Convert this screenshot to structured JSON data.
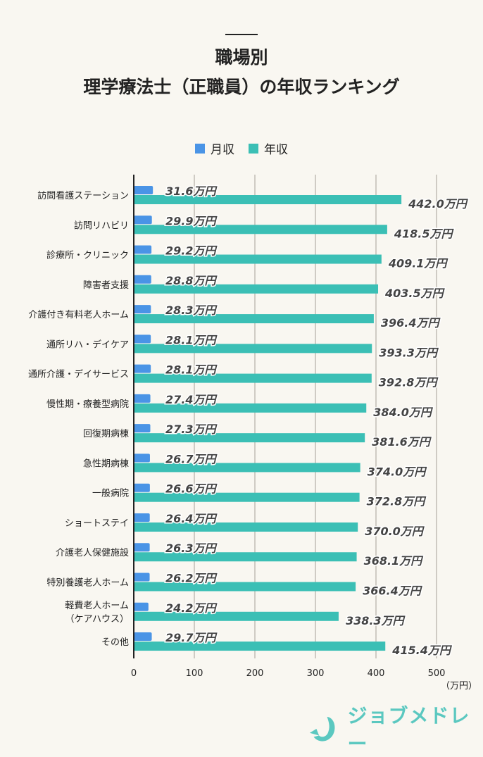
{
  "chart_data": {
    "type": "bar",
    "orientation": "horizontal",
    "title_lines": [
      "職場別",
      "理学療法士（正職員）の年収ランキング"
    ],
    "categories": [
      "訪問看護ステーション",
      "訪問リハビリ",
      "診療所・クリニック",
      "障害者支援",
      "介護付き有料老人ホーム",
      "通所リハ・デイケア",
      "通所介護・デイサービス",
      "慢性期・療養型病院",
      "回復期病棟",
      "急性期病棟",
      "一般病院",
      "ショートステイ",
      "介護老人保健施設",
      "特別養護老人ホーム",
      "軽費老人ホーム\n（ケアハウス）",
      "その他"
    ],
    "series": [
      {
        "name": "月収",
        "color": "#4a94e6",
        "values": [
          31.6,
          29.9,
          29.2,
          28.8,
          28.3,
          28.1,
          28.1,
          27.4,
          27.3,
          26.7,
          26.6,
          26.4,
          26.3,
          26.2,
          24.2,
          29.7
        ]
      },
      {
        "name": "年収",
        "color": "#3bbfb5",
        "values": [
          442.0,
          418.5,
          409.1,
          403.5,
          396.4,
          393.3,
          392.8,
          384.0,
          381.6,
          374.0,
          372.8,
          370.0,
          368.1,
          366.4,
          338.3,
          415.4
        ]
      }
    ],
    "value_suffix": "万円",
    "xlim": [
      0,
      500
    ],
    "xticks": [
      "0",
      "100",
      "200",
      "300",
      "400",
      "500"
    ],
    "xunit": "（万円）",
    "grid": true,
    "legend_position": "top"
  },
  "brand": {
    "name": "ジョブメドレー",
    "color": "#5bc8c0"
  }
}
